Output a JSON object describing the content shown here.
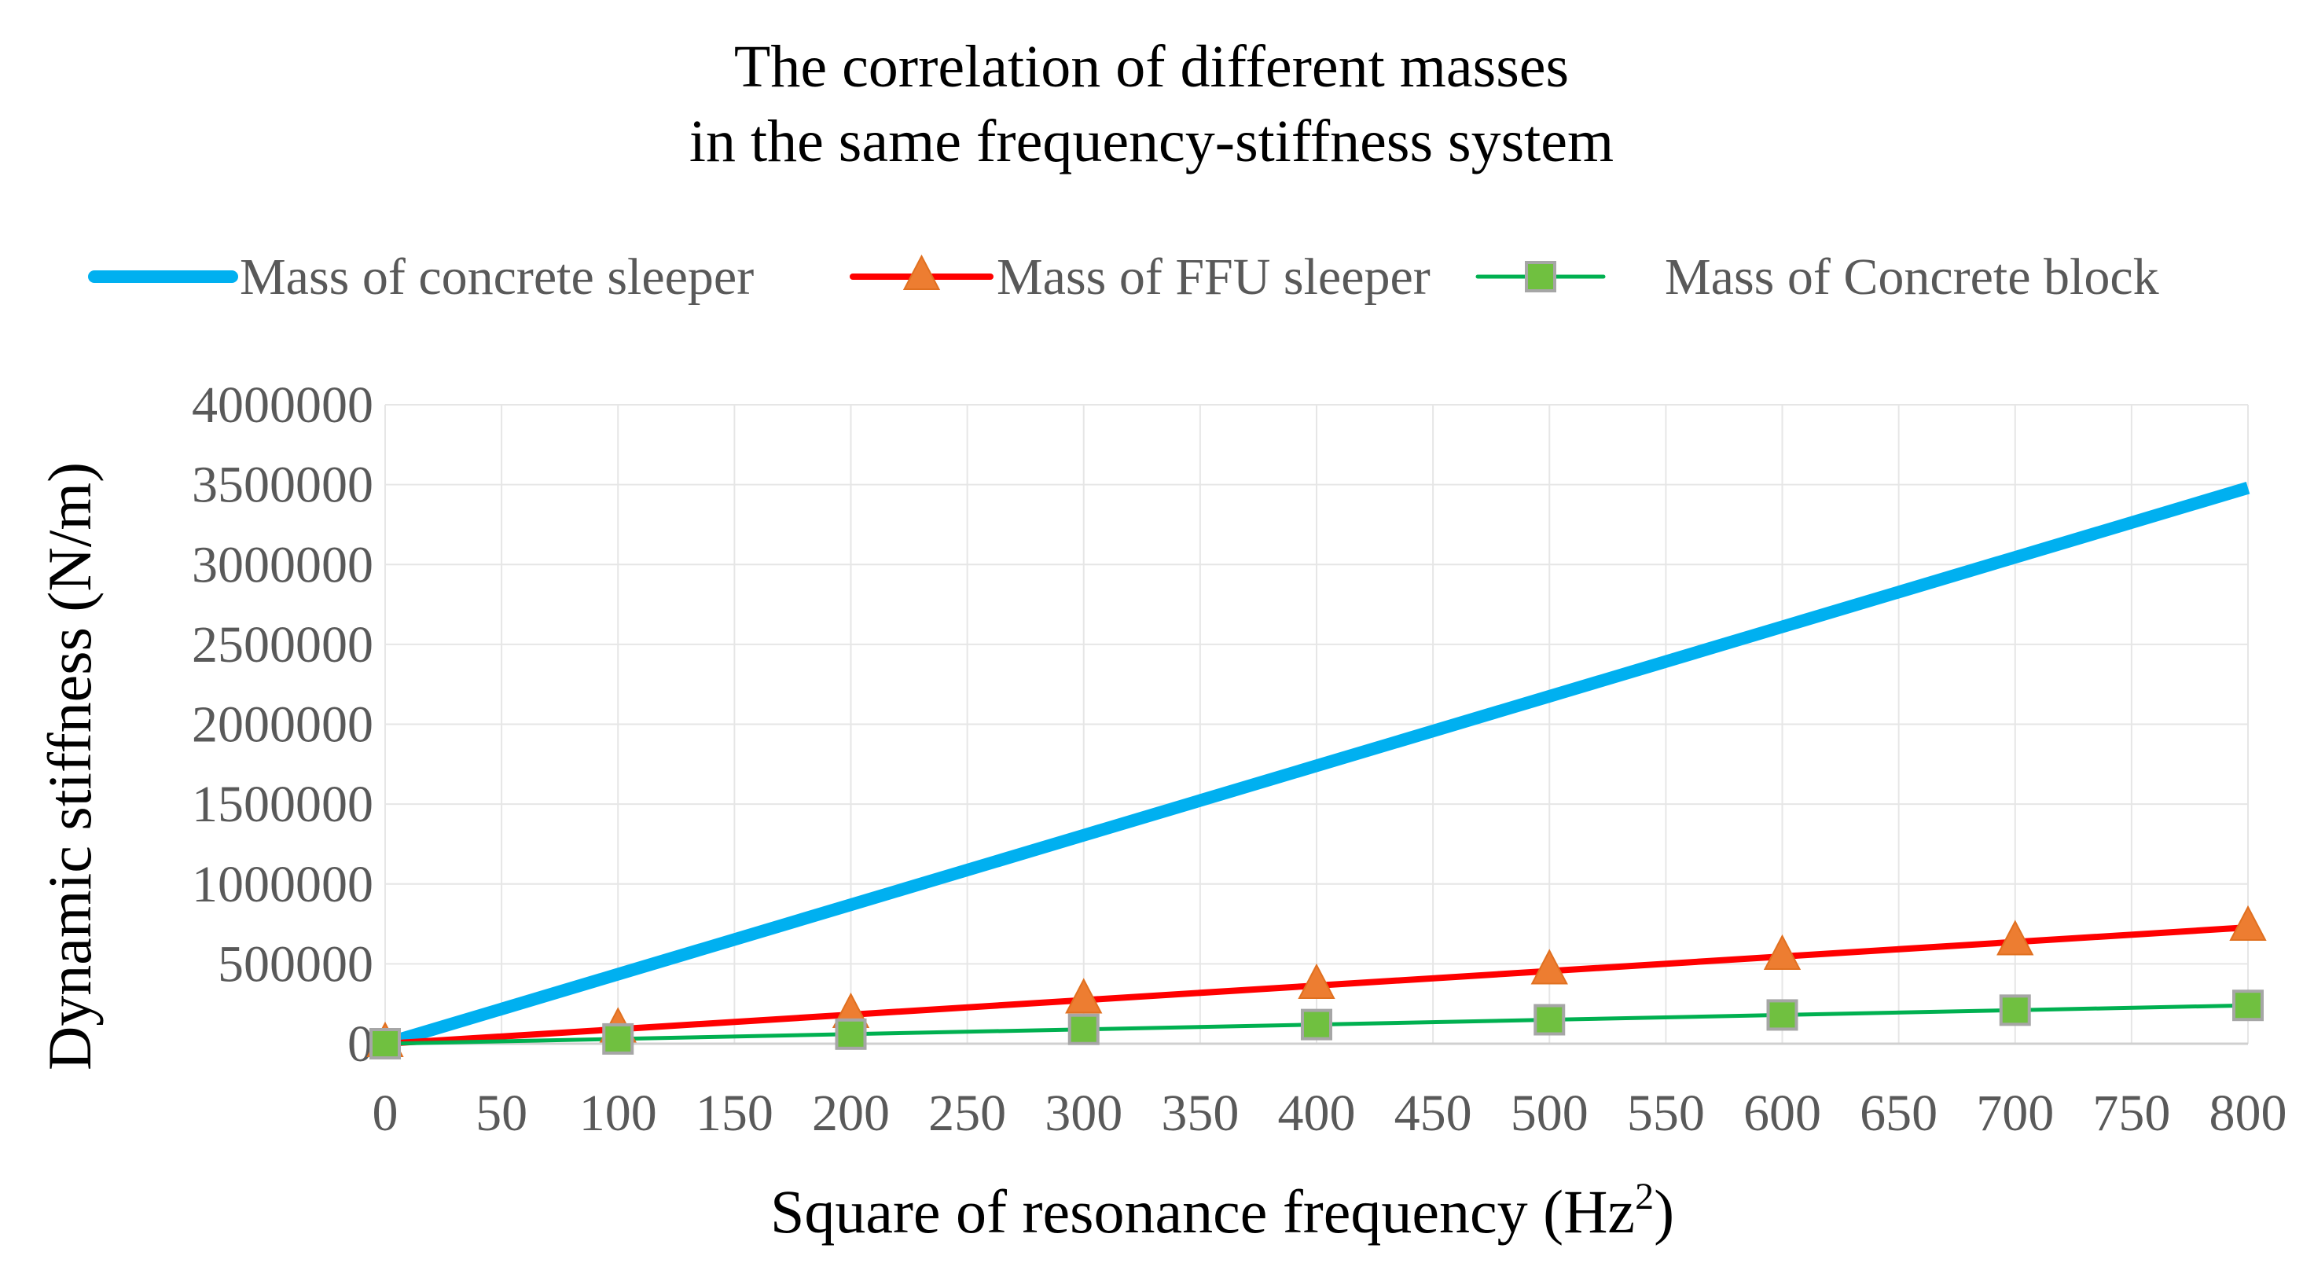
{
  "chart_data": {
    "type": "line",
    "title_lines": [
      "The correlation of different masses",
      "in the same frequency-stiffness system"
    ],
    "xlabel_main": "Square of resonance frequency (Hz",
    "xlabel_sup": "2",
    "xlabel_close": ")",
    "ylabel": "Dynamic  stiffness (N/m)",
    "xlim": [
      0,
      800
    ],
    "ylim": [
      0,
      4000000
    ],
    "x_ticks": [
      "0",
      "50",
      "100",
      "150",
      "200",
      "250",
      "300",
      "350",
      "400",
      "450",
      "500",
      "550",
      "600",
      "650",
      "700",
      "750",
      "800"
    ],
    "y_ticks": [
      "0",
      "500000",
      "1000000",
      "1500000",
      "2000000",
      "2500000",
      "3000000",
      "3500000",
      "4000000"
    ],
    "grid": true,
    "legend_position": "top",
    "x": [
      0,
      100,
      200,
      300,
      400,
      500,
      600,
      700,
      800
    ],
    "series": [
      {
        "name": "Mass of concrete sleeper",
        "color": "#00b0f0",
        "marker": "none",
        "values": [
          0,
          435000,
          870000,
          1305000,
          1740000,
          2175000,
          2610000,
          3045000,
          3480000
        ]
      },
      {
        "name": "Mass of FFU sleeper",
        "color": "#ff0000",
        "marker": "triangle",
        "marker_color": "#ed7d31",
        "values": [
          0,
          91000,
          182000,
          273000,
          364000,
          455000,
          546000,
          637000,
          728000
        ]
      },
      {
        "name": "Mass of Concrete block",
        "color": "#00b050",
        "marker": "square",
        "marker_color": "#70c040",
        "values": [
          0,
          30000,
          60000,
          90000,
          120000,
          150000,
          180000,
          210000,
          240000
        ]
      }
    ]
  }
}
